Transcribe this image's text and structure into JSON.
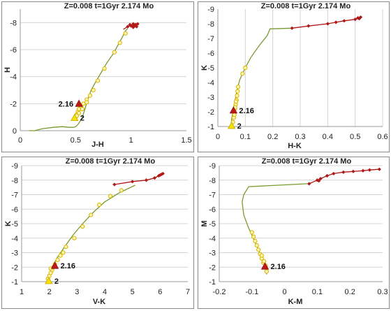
{
  "chart_data": [
    {
      "type": "line",
      "title": "Z=0.008  t=1Gyr  2.174 Mo",
      "xlabel": "J-H",
      "ylabel": "H",
      "xlim": [
        0,
        1.5
      ],
      "ylim": [
        0,
        -9
      ],
      "xticks": [
        "0",
        "0.5",
        "1",
        "1.5"
      ],
      "yticks": [
        "0",
        "-2",
        "-4",
        "-6",
        "-8"
      ],
      "ytick_values": [
        0,
        -2,
        -4,
        -6,
        -8
      ],
      "xtick_values": [
        0,
        0.5,
        1,
        1.5
      ],
      "grid": "horizontal",
      "series": [
        {
          "role": "green-line",
          "color": "#7a9a2e",
          "points": [
            [
              0.08,
              0.0
            ],
            [
              0.13,
              0.0
            ],
            [
              0.2,
              -0.15
            ],
            [
              0.3,
              -0.25
            ],
            [
              0.38,
              -0.3
            ],
            [
              0.44,
              -0.25
            ],
            [
              0.48,
              -0.25
            ],
            [
              0.5,
              -0.3
            ],
            [
              0.52,
              -0.45
            ],
            [
              0.54,
              -0.7
            ],
            [
              0.56,
              -1.0
            ],
            [
              0.58,
              -1.5
            ],
            [
              0.61,
              -2.3
            ],
            [
              0.64,
              -3.0
            ],
            [
              0.68,
              -3.6
            ],
            [
              0.73,
              -4.3
            ],
            [
              0.78,
              -5.0
            ],
            [
              0.84,
              -5.7
            ],
            [
              0.88,
              -6.3
            ],
            [
              0.92,
              -6.9
            ],
            [
              0.95,
              -7.4
            ],
            [
              0.97,
              -7.55
            ]
          ]
        },
        {
          "role": "yellow-markers",
          "color": "#f0d000",
          "points": [
            [
              0.5,
              -1.0
            ],
            [
              0.51,
              -1.2
            ],
            [
              0.52,
              -1.4
            ],
            [
              0.53,
              -1.6
            ],
            [
              0.55,
              -1.8
            ],
            [
              0.57,
              -2.0
            ],
            [
              0.6,
              -2.3
            ],
            [
              0.63,
              -2.6
            ],
            [
              0.66,
              -3.0
            ],
            [
              0.6,
              -2.1
            ],
            [
              0.56,
              -1.6
            ],
            [
              0.53,
              -1.3
            ],
            [
              0.51,
              -1.1
            ],
            [
              0.7,
              -3.7
            ],
            [
              0.76,
              -4.6
            ],
            [
              0.85,
              -5.8
            ],
            [
              0.9,
              -6.5
            ],
            [
              0.95,
              -7.2
            ]
          ]
        },
        {
          "role": "red-markers",
          "color": "#b01818",
          "points": [
            [
              0.97,
              -7.7
            ],
            [
              0.99,
              -7.85
            ],
            [
              1.02,
              -7.9
            ],
            [
              1.04,
              -7.85
            ],
            [
              1.06,
              -7.9
            ],
            [
              1.05,
              -7.7
            ],
            [
              1.02,
              -7.65
            ],
            [
              1.0,
              -7.75
            ],
            [
              1.03,
              -7.75
            ]
          ]
        },
        {
          "role": "red-line",
          "color": "#b01818",
          "points": [
            [
              0.93,
              -7.5
            ],
            [
              0.97,
              -7.7
            ],
            [
              1.02,
              -7.9
            ],
            [
              1.06,
              -7.9
            ],
            [
              1.0,
              -7.75
            ],
            [
              1.05,
              -7.75
            ]
          ]
        }
      ],
      "annotations": [
        {
          "text": "2.16",
          "x": 0.53,
          "y": -2.0,
          "marker": "red-triangle",
          "label_side": "left"
        },
        {
          "text": "2",
          "x": 0.49,
          "y": -0.95,
          "marker": "yellow-triangle",
          "label_side": "right"
        }
      ]
    },
    {
      "type": "line",
      "title": "Z=0.008  t=1Gyr  2.174 Mo",
      "xlabel": "H-K",
      "ylabel": "K",
      "xlim": [
        0,
        0.6
      ],
      "ylim": [
        -1,
        -9
      ],
      "xticks": [
        "0",
        "0.1",
        "0.2",
        "0.3",
        "0.4",
        "0.5",
        "0.6"
      ],
      "xtick_values": [
        0,
        0.1,
        0.2,
        0.3,
        0.4,
        0.5,
        0.6
      ],
      "yticks": [
        "-1",
        "-2",
        "-3",
        "-4",
        "-5",
        "-6",
        "-7",
        "-8",
        "-9"
      ],
      "ytick_values": [
        -1,
        -2,
        -3,
        -4,
        -5,
        -6,
        -7,
        -8,
        -9
      ],
      "grid": "vertical",
      "series": [
        {
          "role": "green-line",
          "color": "#7a9a2e",
          "points": [
            [
              0.05,
              -1.0
            ],
            [
              0.05,
              -1.5
            ],
            [
              0.055,
              -2.0
            ],
            [
              0.06,
              -2.5
            ],
            [
              0.065,
              -3.0
            ],
            [
              0.07,
              -3.5
            ],
            [
              0.08,
              -4.2
            ],
            [
              0.1,
              -5.0
            ],
            [
              0.12,
              -5.7
            ],
            [
              0.15,
              -6.5
            ],
            [
              0.18,
              -7.2
            ],
            [
              0.19,
              -7.65
            ],
            [
              0.27,
              -7.7
            ]
          ]
        },
        {
          "role": "yellow-markers",
          "color": "#f0d000",
          "points": [
            [
              0.055,
              -1.3
            ],
            [
              0.058,
              -1.6
            ],
            [
              0.06,
              -1.9
            ],
            [
              0.062,
              -2.2
            ],
            [
              0.065,
              -2.5
            ],
            [
              0.068,
              -2.8
            ],
            [
              0.07,
              -3.1
            ],
            [
              0.072,
              -3.4
            ],
            [
              0.074,
              -3.7
            ],
            [
              0.066,
              -2.7
            ],
            [
              0.063,
              -2.3
            ],
            [
              0.06,
              -1.8
            ],
            [
              0.09,
              -4.6
            ],
            [
              0.1,
              -5.0
            ]
          ]
        },
        {
          "role": "red-line",
          "color": "#b01818",
          "points": [
            [
              0.27,
              -7.7
            ],
            [
              0.33,
              -7.85
            ],
            [
              0.4,
              -8.0
            ],
            [
              0.43,
              -8.1
            ],
            [
              0.46,
              -8.2
            ],
            [
              0.5,
              -8.3
            ],
            [
              0.51,
              -8.4
            ],
            [
              0.52,
              -8.45
            ]
          ]
        },
        {
          "role": "red-markers",
          "color": "#b01818",
          "points": [
            [
              0.27,
              -7.7
            ],
            [
              0.33,
              -7.85
            ],
            [
              0.4,
              -8.0
            ],
            [
              0.43,
              -8.1
            ],
            [
              0.46,
              -8.2
            ],
            [
              0.5,
              -8.3
            ],
            [
              0.51,
              -8.4
            ],
            [
              0.52,
              -8.45
            ],
            [
              0.515,
              -8.35
            ]
          ]
        }
      ],
      "annotations": [
        {
          "text": "2.16",
          "x": 0.057,
          "y": -2.1,
          "marker": "red-triangle",
          "label_side": "right"
        },
        {
          "text": "2",
          "x": 0.05,
          "y": -1.05,
          "marker": "yellow-triangle",
          "label_side": "right"
        }
      ]
    },
    {
      "type": "line",
      "title": "Z=0.008  t=1Gyr  2.174 Mo",
      "xlabel": "V-K",
      "ylabel": "K",
      "xlim": [
        1,
        7
      ],
      "ylim": [
        -1,
        -9
      ],
      "xticks": [
        "1",
        "2",
        "3",
        "4",
        "5",
        "6",
        "7"
      ],
      "xtick_values": [
        1,
        2,
        3,
        4,
        5,
        6,
        7
      ],
      "yticks": [
        "-1",
        "-2",
        "-3",
        "-4",
        "-5",
        "-6",
        "-7",
        "-8",
        "-9"
      ],
      "ytick_values": [
        -1,
        -2,
        -3,
        -4,
        -5,
        -6,
        -7,
        -8,
        -9
      ],
      "grid": "horizontal",
      "series": [
        {
          "role": "green-line",
          "color": "#7a9a2e",
          "points": [
            [
              1.95,
              -1.0
            ],
            [
              2.0,
              -1.5
            ],
            [
              2.1,
              -2.0
            ],
            [
              2.3,
              -2.7
            ],
            [
              2.55,
              -3.4
            ],
            [
              2.85,
              -4.2
            ],
            [
              3.2,
              -5.0
            ],
            [
              3.6,
              -5.8
            ],
            [
              4.0,
              -6.5
            ],
            [
              4.5,
              -7.1
            ],
            [
              5.1,
              -7.65
            ]
          ]
        },
        {
          "role": "yellow-markers",
          "color": "#f0d000",
          "points": [
            [
              1.95,
              -1.2
            ],
            [
              2.0,
              -1.4
            ],
            [
              2.05,
              -1.6
            ],
            [
              2.1,
              -1.8
            ],
            [
              2.15,
              -2.0
            ],
            [
              2.3,
              -2.5
            ],
            [
              2.4,
              -2.8
            ],
            [
              2.5,
              -3.0
            ],
            [
              2.2,
              -2.2
            ],
            [
              2.05,
              -1.9
            ],
            [
              2.6,
              -3.4
            ],
            [
              2.9,
              -4.0
            ],
            [
              3.2,
              -4.8
            ],
            [
              3.5,
              -5.6
            ],
            [
              3.8,
              -6.3
            ],
            [
              4.2,
              -6.9
            ],
            [
              4.6,
              -7.3
            ]
          ]
        },
        {
          "role": "red-line",
          "color": "#b01818",
          "points": [
            [
              4.35,
              -7.7
            ],
            [
              5.0,
              -7.9
            ],
            [
              5.5,
              -8.0
            ],
            [
              5.8,
              -8.15
            ],
            [
              5.95,
              -8.3
            ],
            [
              6.05,
              -8.4
            ],
            [
              6.1,
              -8.45
            ]
          ]
        },
        {
          "role": "red-markers",
          "color": "#b01818",
          "points": [
            [
              4.35,
              -7.7
            ],
            [
              5.0,
              -7.9
            ],
            [
              5.5,
              -8.0
            ],
            [
              5.8,
              -8.15
            ],
            [
              5.95,
              -8.3
            ],
            [
              6.05,
              -8.4
            ],
            [
              6.1,
              -8.45
            ],
            [
              6.0,
              -8.35
            ]
          ]
        }
      ],
      "annotations": [
        {
          "text": "2.16",
          "x": 2.2,
          "y": -2.1,
          "marker": "red-triangle",
          "label_side": "right"
        },
        {
          "text": "2",
          "x": 1.98,
          "y": -1.05,
          "marker": "yellow-triangle",
          "label_side": "right"
        }
      ]
    },
    {
      "type": "line",
      "title": "Z=0.008  t=1Gyr  2.174 Mo",
      "xlabel": "K-M",
      "ylabel": "M",
      "xlim": [
        -0.2,
        0.3
      ],
      "ylim": [
        -1,
        -9
      ],
      "xticks": [
        "-0.2",
        "-0.1",
        "0",
        "0.1",
        "0.2",
        "0.3"
      ],
      "xtick_values": [
        -0.2,
        -0.1,
        0,
        0.1,
        0.2,
        0.3
      ],
      "yticks": [
        "-1",
        "-2",
        "-3",
        "-4",
        "-5",
        "-6",
        "-7",
        "-8",
        "-9"
      ],
      "ytick_values": [
        -1,
        -2,
        -3,
        -4,
        -5,
        -6,
        -7,
        -8,
        -9
      ],
      "grid": "horizontal",
      "series": [
        {
          "role": "green-line",
          "color": "#7a9a2e",
          "points": [
            [
              -0.055,
              -1.5
            ],
            [
              -0.06,
              -2.0
            ],
            [
              -0.07,
              -2.7
            ],
            [
              -0.09,
              -3.7
            ],
            [
              -0.11,
              -4.7
            ],
            [
              -0.125,
              -5.6
            ],
            [
              -0.13,
              -6.5
            ],
            [
              -0.125,
              -7.0
            ],
            [
              -0.11,
              -7.55
            ],
            [
              0.07,
              -7.75
            ]
          ]
        },
        {
          "role": "yellow-markers",
          "color": "#f0d000",
          "points": [
            [
              -0.055,
              -1.7
            ],
            [
              -0.06,
              -2.0
            ],
            [
              -0.065,
              -2.3
            ],
            [
              -0.07,
              -2.6
            ],
            [
              -0.075,
              -2.9
            ],
            [
              -0.08,
              -3.2
            ],
            [
              -0.085,
              -3.5
            ],
            [
              -0.07,
              -2.8
            ],
            [
              -0.063,
              -2.4
            ],
            [
              -0.058,
              -2.1
            ],
            [
              -0.09,
              -3.8
            ],
            [
              -0.095,
              -4.1
            ],
            [
              -0.1,
              -4.4
            ]
          ]
        },
        {
          "role": "red-line",
          "color": "#b01818",
          "points": [
            [
              0.075,
              -7.75
            ],
            [
              0.1,
              -8.0
            ],
            [
              0.11,
              -8.1
            ],
            [
              0.13,
              -8.3
            ],
            [
              0.15,
              -8.45
            ],
            [
              0.18,
              -8.55
            ],
            [
              0.21,
              -8.6
            ],
            [
              0.24,
              -8.65
            ],
            [
              0.26,
              -8.7
            ],
            [
              0.29,
              -8.75
            ]
          ]
        },
        {
          "role": "red-markers",
          "color": "#b01818",
          "points": [
            [
              0.075,
              -7.75
            ],
            [
              0.1,
              -8.0
            ],
            [
              0.105,
              -7.95
            ],
            [
              0.11,
              -8.1
            ],
            [
              0.13,
              -8.3
            ],
            [
              0.15,
              -8.45
            ],
            [
              0.18,
              -8.55
            ],
            [
              0.21,
              -8.6
            ],
            [
              0.24,
              -8.65
            ],
            [
              0.26,
              -8.7
            ],
            [
              0.29,
              -8.75
            ]
          ]
        }
      ],
      "annotations": [
        {
          "text": "2.16",
          "x": -0.06,
          "y": -2.05,
          "marker": "red-triangle",
          "label_side": "right"
        }
      ]
    }
  ]
}
